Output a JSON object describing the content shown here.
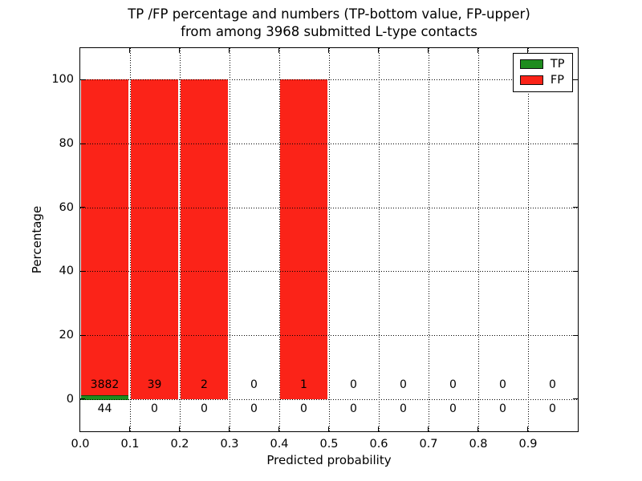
{
  "figure": {
    "title_line1": "TP /FP percentage and numbers (TP-bottom value, FP-upper)",
    "title_line2": "from among 3968 submitted L-type contacts"
  },
  "chart_data": {
    "type": "bar",
    "stacked": true,
    "title": "TP /FP percentage and numbers (TP-bottom value, FP-upper)\nfrom among 3968 submitted L-type contacts",
    "xlabel": "Predicted probability",
    "ylabel": "Percentage",
    "xlim": [
      0.0,
      1.0
    ],
    "ylim": [
      -10,
      110
    ],
    "x_tick_labels": [
      "0.0",
      "0.1",
      "0.2",
      "0.3",
      "0.4",
      "0.5",
      "0.6",
      "0.7",
      "0.8",
      "0.9"
    ],
    "y_tick_values": [
      0,
      20,
      40,
      60,
      80,
      100
    ],
    "bin_width": 0.1,
    "bin_starts": [
      0.0,
      0.1,
      0.2,
      0.3,
      0.4,
      0.5,
      0.6,
      0.7,
      0.8,
      0.9
    ],
    "total_submitted": 3968,
    "grid_style": "dotted",
    "legend_position": "upper right",
    "series": [
      {
        "name": "TP",
        "color": "#1e8c1e",
        "edge_color": "#0a4f0a",
        "counts": [
          44,
          0,
          0,
          0,
          0,
          0,
          0,
          0,
          0,
          0
        ],
        "percent": [
          1.12,
          0,
          0,
          0,
          0,
          0,
          0,
          0,
          0,
          0
        ],
        "count_label_row": "below-zero-line"
      },
      {
        "name": "FP",
        "color": "#fb2318",
        "edge_color": "#b01107",
        "counts": [
          3882,
          39,
          2,
          0,
          1,
          0,
          0,
          0,
          0,
          0
        ],
        "percent": [
          98.88,
          100,
          100,
          0,
          100,
          0,
          0,
          0,
          0,
          0
        ],
        "count_label_row": "above-zero-line"
      }
    ]
  }
}
